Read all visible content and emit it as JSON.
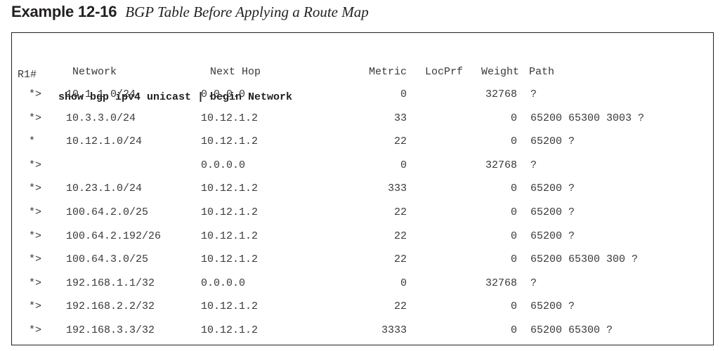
{
  "caption": {
    "label": "Example 12-16",
    "title": "BGP Table Before Applying a Route Map"
  },
  "command": {
    "prompt": "R1#",
    "text": "show bgp ipv4 unicast | begin Network"
  },
  "table": {
    "headers": {
      "network": "Network",
      "next_hop": "Next Hop",
      "metric": "Metric",
      "locprf": "LocPrf",
      "weight": "Weight",
      "path": "Path"
    },
    "rows": [
      {
        "status": "*>",
        "network": "10.1.1.0/24",
        "next_hop": "0.0.0.0",
        "metric": "0",
        "locprf": "",
        "weight": "32768",
        "path": "?"
      },
      {
        "status": "*>",
        "network": "10.3.3.0/24",
        "next_hop": "10.12.1.2",
        "metric": "33",
        "locprf": "",
        "weight": "0",
        "path": "65200 65300 3003 ?"
      },
      {
        "status": "*",
        "network": "10.12.1.0/24",
        "next_hop": "10.12.1.2",
        "metric": "22",
        "locprf": "",
        "weight": "0",
        "path": "65200 ?"
      },
      {
        "status": "*>",
        "network": "",
        "next_hop": "0.0.0.0",
        "metric": "0",
        "locprf": "",
        "weight": "32768",
        "path": "?"
      },
      {
        "status": "*>",
        "network": "10.23.1.0/24",
        "next_hop": "10.12.1.2",
        "metric": "333",
        "locprf": "",
        "weight": "0",
        "path": "65200 ?"
      },
      {
        "status": "*>",
        "network": "100.64.2.0/25",
        "next_hop": "10.12.1.2",
        "metric": "22",
        "locprf": "",
        "weight": "0",
        "path": "65200 ?"
      },
      {
        "status": "*>",
        "network": "100.64.2.192/26",
        "next_hop": "10.12.1.2",
        "metric": "22",
        "locprf": "",
        "weight": "0",
        "path": "65200 ?"
      },
      {
        "status": "*>",
        "network": "100.64.3.0/25",
        "next_hop": "10.12.1.2",
        "metric": "22",
        "locprf": "",
        "weight": "0",
        "path": "65200 65300 300 ?"
      },
      {
        "status": "*>",
        "network": "192.168.1.1/32",
        "next_hop": "0.0.0.0",
        "metric": "0",
        "locprf": "",
        "weight": "32768",
        "path": "?"
      },
      {
        "status": "*>",
        "network": "192.168.2.2/32",
        "next_hop": "10.12.1.2",
        "metric": "22",
        "locprf": "",
        "weight": "0",
        "path": "65200 ?"
      },
      {
        "status": "*>",
        "network": "192.168.3.3/32",
        "next_hop": "10.12.1.2",
        "metric": "3333",
        "locprf": "",
        "weight": "0",
        "path": "65200 65300 ?"
      }
    ]
  }
}
